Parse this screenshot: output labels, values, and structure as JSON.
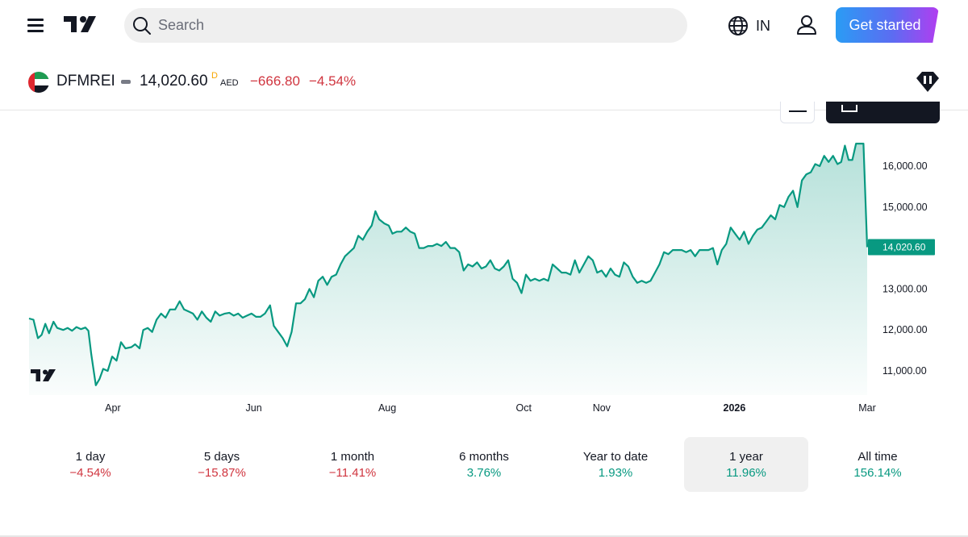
{
  "nav": {
    "search_placeholder": "Search",
    "language": "IN",
    "cta_label": "Get started",
    "icons": [
      "menu-icon",
      "tradingview-logo",
      "search-icon",
      "globe-icon",
      "user-icon",
      "diamond-icon"
    ]
  },
  "symbol": {
    "ticker": "DFMREI",
    "price": "14,020.60",
    "delay_marker": "D",
    "currency": "AED",
    "change": "−666.80",
    "change_pct": "−4.54%",
    "flag": "uae-flag"
  },
  "colors": {
    "line": "#089981",
    "negative": "#d0353f",
    "positive": "#089981",
    "price_label_bg": "#089981",
    "cta_gradient": [
      "#2a9cf4",
      "#5c6cf2",
      "#b23df0"
    ]
  },
  "chart_data": {
    "type": "area",
    "title": "",
    "xlabel": "",
    "ylabel": "",
    "yticks": [
      "16,000.00",
      "15,000.00",
      "14,000.00",
      "13,000.00",
      "12,000.00",
      "11,000.00"
    ],
    "ylim": [
      10400,
      17000
    ],
    "xticks": [
      {
        "label": "Apr",
        "x": 1.13,
        "bold": false
      },
      {
        "label": "Jun",
        "x": 3.03,
        "bold": false
      },
      {
        "label": "Aug",
        "x": 4.83,
        "bold": false
      },
      {
        "label": "Oct",
        "x": 6.67,
        "bold": false
      },
      {
        "label": "Nov",
        "x": 7.72,
        "bold": false
      },
      {
        "label": "2026",
        "x": 9.51,
        "bold": true
      },
      {
        "label": "Mar",
        "x": 11.3,
        "bold": false
      }
    ],
    "xlim": [
      0,
      11.3
    ],
    "last_price_label": "14,020.60",
    "last_value": 14020.6,
    "series": [
      {
        "values": [
          [
            0.0,
            12280
          ],
          [
            0.06,
            12250
          ],
          [
            0.12,
            11800
          ],
          [
            0.17,
            11880
          ],
          [
            0.22,
            12150
          ],
          [
            0.27,
            11920
          ],
          [
            0.33,
            12200
          ],
          [
            0.38,
            12050
          ],
          [
            0.46,
            12000
          ],
          [
            0.52,
            12050
          ],
          [
            0.58,
            11980
          ],
          [
            0.64,
            12070
          ],
          [
            0.7,
            12020
          ],
          [
            0.76,
            12060
          ],
          [
            0.8,
            11980
          ],
          [
            0.84,
            11400
          ],
          [
            0.9,
            10650
          ],
          [
            0.95,
            10800
          ],
          [
            1.0,
            11050
          ],
          [
            1.06,
            11000
          ],
          [
            1.12,
            11350
          ],
          [
            1.18,
            11250
          ],
          [
            1.24,
            11700
          ],
          [
            1.3,
            11550
          ],
          [
            1.38,
            11580
          ],
          [
            1.43,
            11650
          ],
          [
            1.49,
            11550
          ],
          [
            1.54,
            12000
          ],
          [
            1.6,
            12050
          ],
          [
            1.66,
            11950
          ],
          [
            1.72,
            12250
          ],
          [
            1.78,
            12400
          ],
          [
            1.84,
            12300
          ],
          [
            1.9,
            12500
          ],
          [
            1.97,
            12500
          ],
          [
            2.03,
            12700
          ],
          [
            2.09,
            12500
          ],
          [
            2.15,
            12450
          ],
          [
            2.21,
            12400
          ],
          [
            2.27,
            12250
          ],
          [
            2.33,
            12450
          ],
          [
            2.39,
            12300
          ],
          [
            2.45,
            12200
          ],
          [
            2.51,
            12450
          ],
          [
            2.57,
            12350
          ],
          [
            2.64,
            12400
          ],
          [
            2.7,
            12420
          ],
          [
            2.76,
            12350
          ],
          [
            2.82,
            12400
          ],
          [
            2.88,
            12300
          ],
          [
            2.94,
            12350
          ],
          [
            3.0,
            12400
          ],
          [
            3.06,
            12320
          ],
          [
            3.12,
            12320
          ],
          [
            3.18,
            12400
          ],
          [
            3.25,
            12600
          ],
          [
            3.3,
            12100
          ],
          [
            3.36,
            11950
          ],
          [
            3.42,
            11800
          ],
          [
            3.48,
            11600
          ],
          [
            3.54,
            11950
          ],
          [
            3.6,
            12650
          ],
          [
            3.66,
            12650
          ],
          [
            3.72,
            12750
          ],
          [
            3.78,
            13000
          ],
          [
            3.84,
            12800
          ],
          [
            3.9,
            13200
          ],
          [
            3.96,
            13300
          ],
          [
            4.02,
            13100
          ],
          [
            4.08,
            13300
          ],
          [
            4.14,
            13350
          ],
          [
            4.2,
            13600
          ],
          [
            4.26,
            13800
          ],
          [
            4.32,
            13900
          ],
          [
            4.38,
            14000
          ],
          [
            4.44,
            14300
          ],
          [
            4.5,
            14200
          ],
          [
            4.56,
            14400
          ],
          [
            4.62,
            14550
          ],
          [
            4.67,
            14900
          ],
          [
            4.72,
            14700
          ],
          [
            4.79,
            14600
          ],
          [
            4.85,
            14550
          ],
          [
            4.9,
            14350
          ],
          [
            4.96,
            14400
          ],
          [
            5.02,
            14400
          ],
          [
            5.08,
            14500
          ],
          [
            5.14,
            14400
          ],
          [
            5.2,
            14350
          ],
          [
            5.26,
            14000
          ],
          [
            5.32,
            14000
          ],
          [
            5.38,
            14050
          ],
          [
            5.44,
            14050
          ],
          [
            5.5,
            14100
          ],
          [
            5.56,
            14050
          ],
          [
            5.62,
            14150
          ],
          [
            5.68,
            14000
          ],
          [
            5.74,
            14000
          ],
          [
            5.8,
            13900
          ],
          [
            5.86,
            13450
          ],
          [
            5.92,
            13600
          ],
          [
            5.98,
            13550
          ],
          [
            6.04,
            13650
          ],
          [
            6.1,
            13500
          ],
          [
            6.16,
            13550
          ],
          [
            6.22,
            13700
          ],
          [
            6.28,
            13500
          ],
          [
            6.34,
            13450
          ],
          [
            6.4,
            13550
          ],
          [
            6.46,
            13700
          ],
          [
            6.52,
            13250
          ],
          [
            6.58,
            13150
          ],
          [
            6.64,
            12900
          ],
          [
            6.7,
            13350
          ],
          [
            6.76,
            13200
          ],
          [
            6.82,
            13250
          ],
          [
            6.88,
            13200
          ],
          [
            6.94,
            13250
          ],
          [
            7.0,
            13200
          ],
          [
            7.06,
            13600
          ],
          [
            7.12,
            13500
          ],
          [
            7.18,
            13400
          ],
          [
            7.24,
            13400
          ],
          [
            7.3,
            13350
          ],
          [
            7.36,
            13700
          ],
          [
            7.42,
            13400
          ],
          [
            7.48,
            13600
          ],
          [
            7.54,
            13800
          ],
          [
            7.6,
            13700
          ],
          [
            7.66,
            13400
          ],
          [
            7.72,
            13450
          ],
          [
            7.78,
            13300
          ],
          [
            7.84,
            13500
          ],
          [
            7.9,
            13350
          ],
          [
            7.96,
            13300
          ],
          [
            8.02,
            13650
          ],
          [
            8.08,
            13550
          ],
          [
            8.14,
            13300
          ],
          [
            8.2,
            13150
          ],
          [
            8.26,
            13200
          ],
          [
            8.32,
            13150
          ],
          [
            8.38,
            13200
          ],
          [
            8.44,
            13400
          ],
          [
            8.5,
            13600
          ],
          [
            8.56,
            13900
          ],
          [
            8.62,
            13850
          ],
          [
            8.68,
            13950
          ],
          [
            8.74,
            13950
          ],
          [
            8.8,
            13950
          ],
          [
            8.86,
            13900
          ],
          [
            8.92,
            13950
          ],
          [
            8.98,
            13800
          ],
          [
            9.04,
            13950
          ],
          [
            9.1,
            13950
          ],
          [
            9.16,
            13950
          ],
          [
            9.22,
            14000
          ],
          [
            9.28,
            13600
          ],
          [
            9.34,
            13950
          ],
          [
            9.4,
            14100
          ],
          [
            9.46,
            14500
          ],
          [
            9.52,
            14350
          ],
          [
            9.58,
            14200
          ],
          [
            9.64,
            14400
          ],
          [
            9.7,
            14100
          ],
          [
            9.76,
            14300
          ],
          [
            9.82,
            14450
          ],
          [
            9.88,
            14500
          ],
          [
            9.94,
            14650
          ],
          [
            10.0,
            14800
          ],
          [
            10.06,
            14700
          ],
          [
            10.12,
            15050
          ],
          [
            10.18,
            15000
          ],
          [
            10.24,
            15250
          ],
          [
            10.3,
            15400
          ],
          [
            10.36,
            15000
          ],
          [
            10.42,
            15650
          ],
          [
            10.48,
            15800
          ],
          [
            10.54,
            15850
          ],
          [
            10.6,
            16050
          ],
          [
            10.66,
            16000
          ],
          [
            10.72,
            16250
          ],
          [
            10.78,
            16100
          ],
          [
            10.84,
            16250
          ],
          [
            10.9,
            16050
          ],
          [
            10.95,
            16100
          ],
          [
            11.0,
            16500
          ],
          [
            11.05,
            16150
          ],
          [
            11.1,
            16150
          ],
          [
            11.15,
            16550
          ],
          [
            11.2,
            16550
          ],
          [
            11.25,
            16550
          ],
          [
            11.3,
            14020.6
          ]
        ]
      }
    ]
  },
  "ranges": [
    {
      "label": "1 day",
      "value": "−4.54%",
      "dir": "neg",
      "active": false
    },
    {
      "label": "5 days",
      "value": "−15.87%",
      "dir": "neg",
      "active": false
    },
    {
      "label": "1 month",
      "value": "−11.41%",
      "dir": "neg",
      "active": false
    },
    {
      "label": "6 months",
      "value": "3.76%",
      "dir": "pos",
      "active": false
    },
    {
      "label": "Year to date",
      "value": "1.93%",
      "dir": "pos",
      "active": false
    },
    {
      "label": "1 year",
      "value": "11.96%",
      "dir": "pos",
      "active": true
    },
    {
      "label": "All time",
      "value": "156.14%",
      "dir": "pos",
      "active": false
    }
  ]
}
